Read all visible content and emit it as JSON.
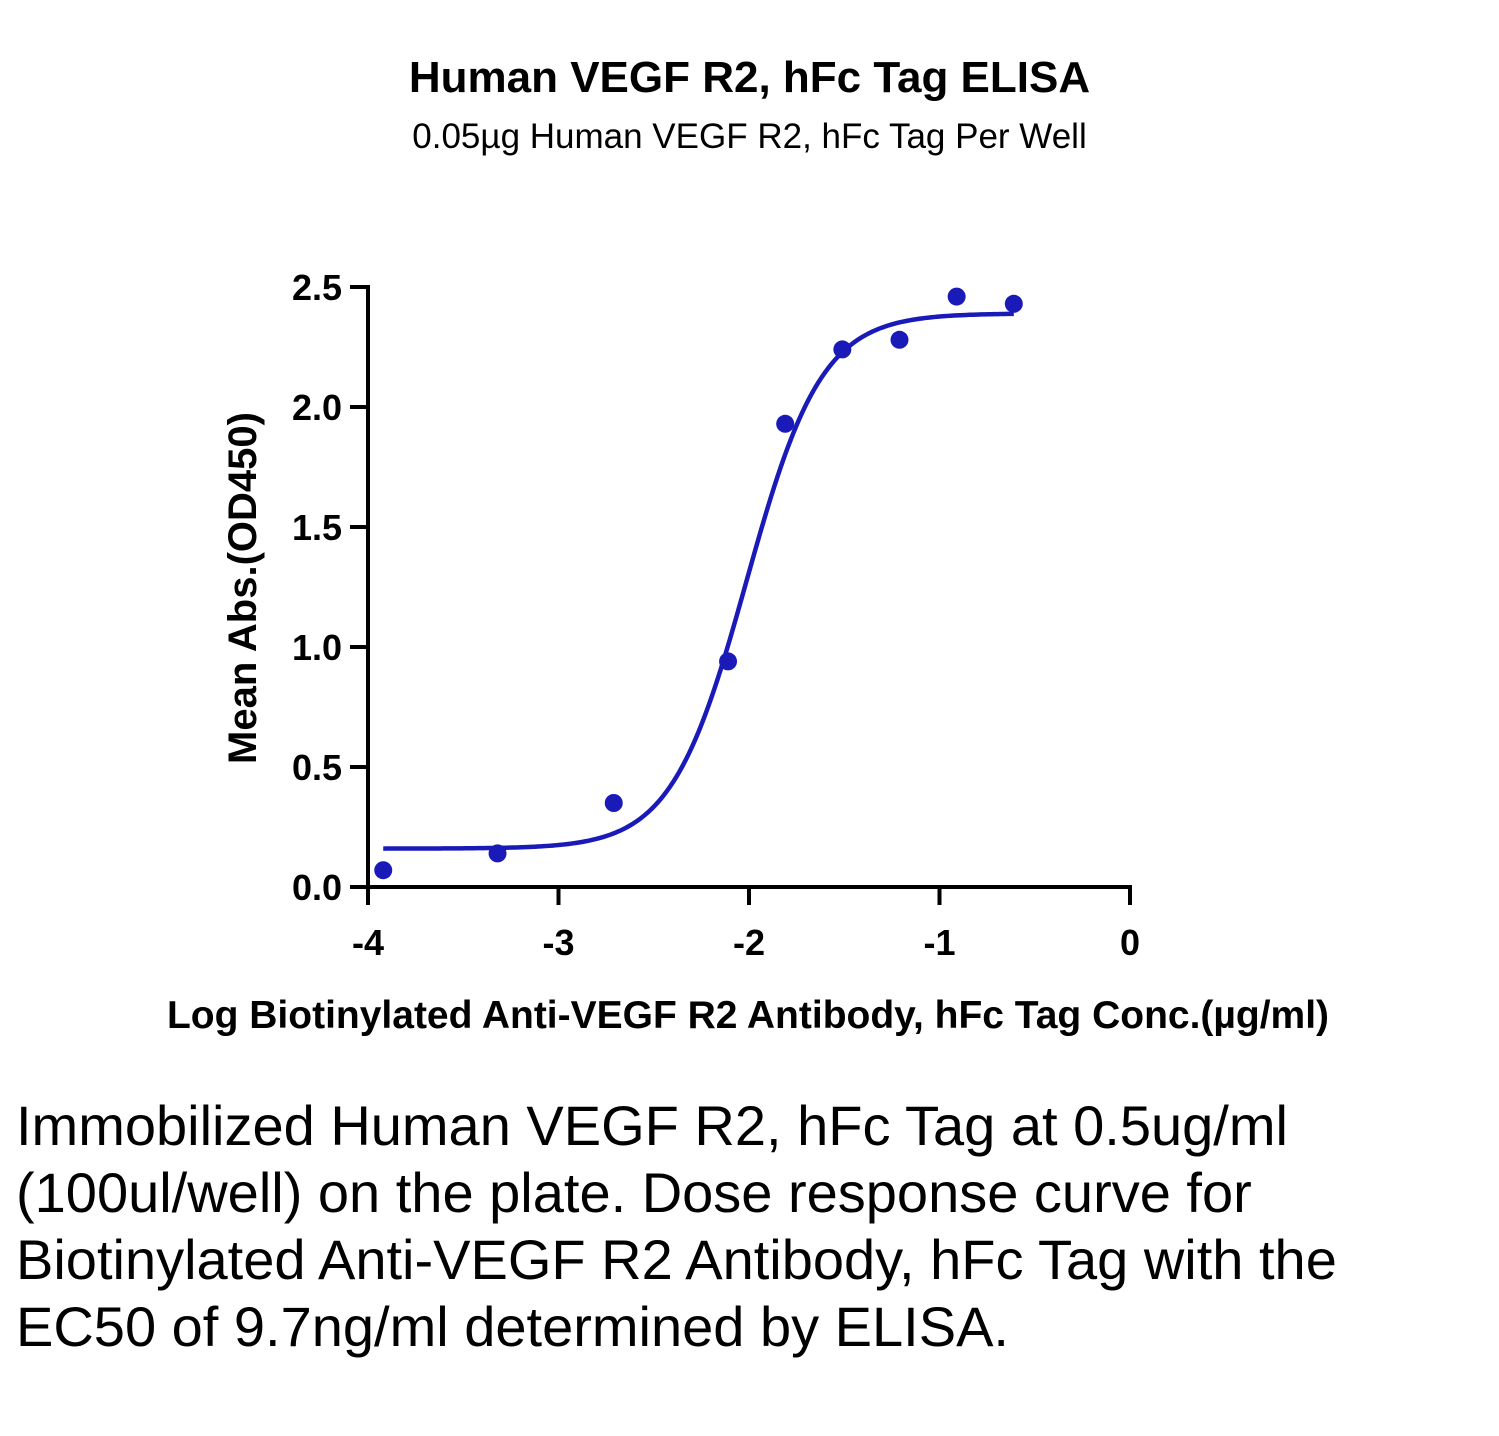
{
  "chart_data": {
    "type": "scatter",
    "title": "Human VEGF R2, hFc Tag ELISA",
    "subtitle": "0.05µg Human VEGF R2, hFc Tag Per Well",
    "xlabel": "Log Biotinylated Anti-VEGF R2 Antibody, hFc Tag Conc.(µg/ml)",
    "ylabel": "Mean Abs.(OD450)",
    "xlim": [
      -4,
      0
    ],
    "ylim": [
      0,
      2.5
    ],
    "x_ticks": [
      -4,
      -3,
      -2,
      -1,
      0
    ],
    "x_tick_labels": [
      "-4",
      "-3",
      "-2",
      "-1",
      "0"
    ],
    "y_ticks": [
      0,
      0.5,
      1,
      1.5,
      2,
      2.5
    ],
    "y_tick_labels": [
      "0.0",
      "0.5",
      "1.0",
      "1.5",
      "2.0",
      "2.5"
    ],
    "grid": false,
    "series": [
      {
        "x": [
          -3.92,
          -3.32,
          -2.71,
          -2.11,
          -1.81,
          -1.51,
          -1.21,
          -0.91,
          -0.61
        ],
        "y": [
          0.07,
          0.14,
          0.35,
          0.94,
          1.93,
          2.24,
          2.28,
          2.46,
          2.43
        ],
        "color": "#1a1ab8",
        "fit": {
          "model": "4PL",
          "bottom": 0.16,
          "top": 2.39,
          "log_ec50": -2.013,
          "hill": 2.2,
          "x_range": [
            -3.92,
            -0.61
          ]
        }
      }
    ]
  },
  "caption": "Immobilized Human VEGF R2, hFc Tag at 0.5ug/ml (100ul/well) on the plate. Dose response curve for Biotinylated Anti-VEGF R2 Antibody, hFc Tag with the EC50 of 9.7ng/ml determined by ELISA."
}
